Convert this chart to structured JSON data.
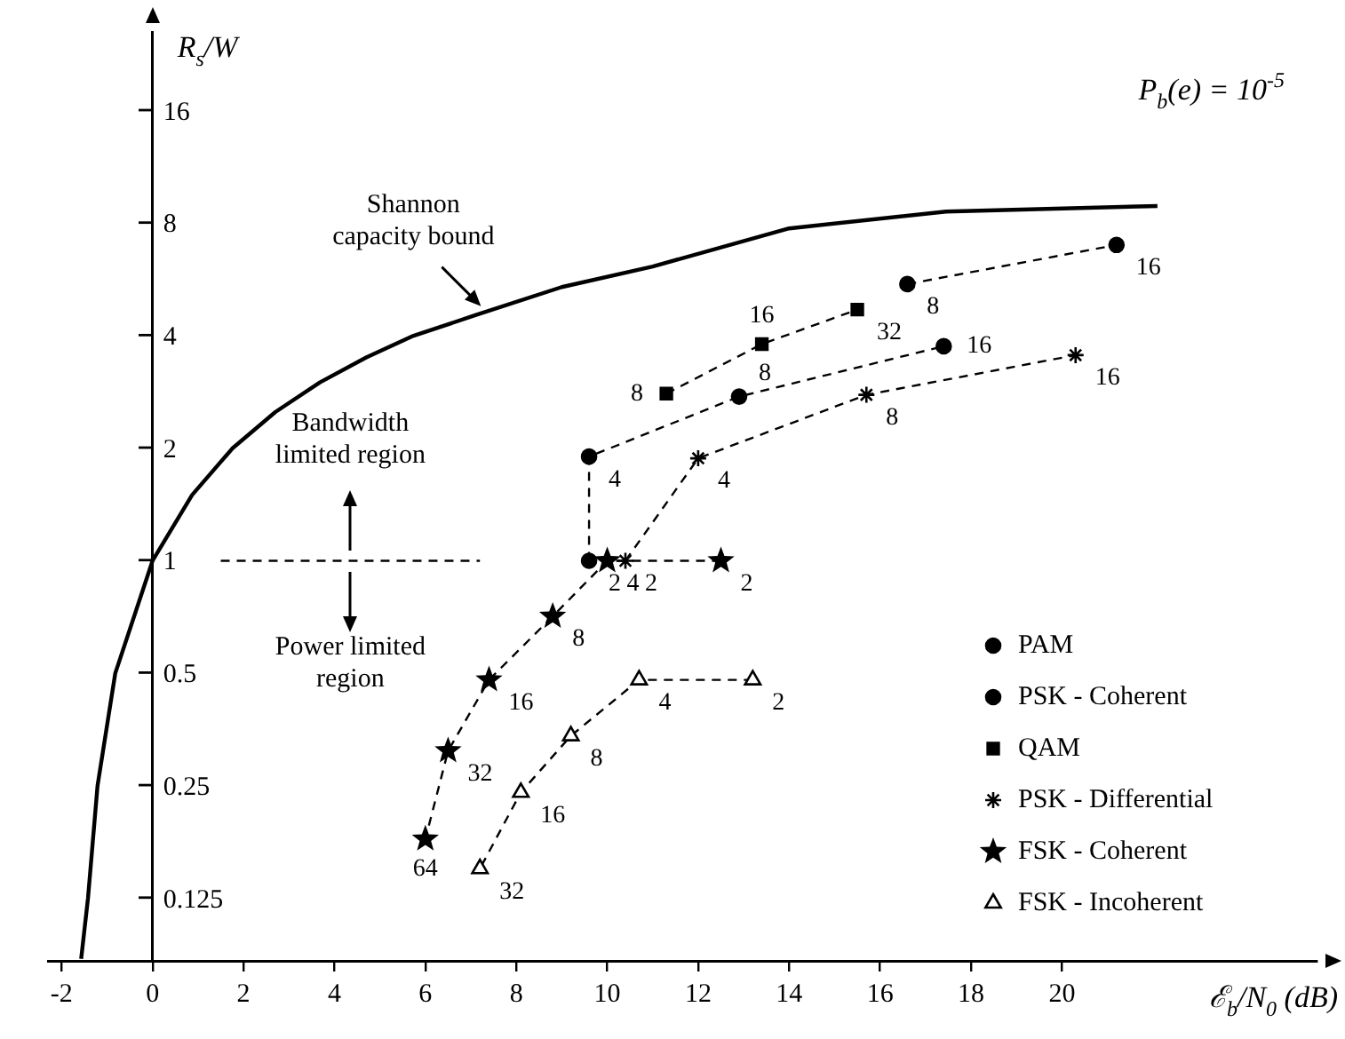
{
  "chart_data": {
    "type": "scatter",
    "title": "P$_{b}$(e) = 10$^{-5}$",
    "xlabel": "ℰ$_{b}$/N$_{0}$ (dB)",
    "ylabel": "R$_{s}$/W",
    "log": "y",
    "xlim": [
      -2.3,
      25.6
    ],
    "ylim": [
      0.085,
      26
    ],
    "xticks": [
      -2,
      0,
      2,
      4,
      6,
      8,
      10,
      12,
      14,
      16,
      18,
      20
    ],
    "yticks": [
      0.125,
      0.25,
      0.5,
      1,
      2,
      4,
      8,
      16
    ],
    "legend": "bottom right",
    "line_style": "dashed",
    "annotations": [
      {
        "text": "Shannon capacity bound",
        "x": 7.3,
        "y": 4.7
      },
      "Bandwidth limited region",
      "Power limited region",
      {
        "text": "8",
        "x": 16.6,
        "y": 5.5
      },
      {
        "text": "16",
        "x": 21.2,
        "y": 7
      },
      {
        "text": "2",
        "x": 9.6,
        "y": 1
      },
      {
        "text": "4",
        "x": 9.6,
        "y": 1.9
      },
      {
        "text": "8",
        "x": 12.9,
        "y": 2.75
      },
      {
        "text": "16",
        "x": 17.4,
        "y": 3.75
      },
      {
        "text": "8",
        "x": 11.3,
        "y": 2.8
      },
      {
        "text": "16",
        "x": 13.4,
        "y": 3.8
      },
      {
        "text": "32",
        "x": 15.5,
        "y": 4.7
      },
      {
        "text": "2",
        "x": 10.4,
        "y": 1
      },
      {
        "text": "4",
        "x": 12.0,
        "y": 1.88
      },
      {
        "text": "8",
        "x": 15.7,
        "y": 2.78
      },
      {
        "text": "16",
        "x": 20.3,
        "y": 3.55
      },
      {
        "text": "2",
        "x": 12.5,
        "y": 1
      },
      {
        "text": "4",
        "x": 10.0,
        "y": 1
      },
      {
        "text": "8",
        "x": 8.8,
        "y": 0.71
      },
      {
        "text": "16",
        "x": 7.4,
        "y": 0.48
      },
      {
        "text": "32",
        "x": 6.5,
        "y": 0.31
      },
      {
        "text": "64",
        "x": 6.0,
        "y": 0.18
      },
      {
        "text": "2",
        "x": 13.2,
        "y": 0.48
      },
      {
        "text": "4",
        "x": 10.7,
        "y": 0.48
      },
      {
        "text": "8",
        "x": 9.2,
        "y": 0.34
      },
      {
        "text": "16",
        "x": 8.1,
        "y": 0.24
      },
      {
        "text": "32",
        "x": 7.2,
        "y": 0.15
      }
    ],
    "series": [
      {
        "type": "line",
        "color": "#000000",
        "marker": "none",
        "line_style": "solid",
        "x": [
          -1.57,
          -1.42,
          -1.21,
          -0.82,
          0,
          0.87,
          1.76,
          2.7,
          3.68,
          4.7,
          5.74,
          7.1,
          9,
          11,
          14,
          17.45,
          22.1
        ],
        "values": [
          0.086,
          0.125,
          0.25,
          0.5,
          1,
          1.5,
          2,
          2.5,
          3,
          3.5,
          4,
          4.54,
          5.4,
          6.13,
          7.75,
          8.6,
          8.9
        ]
      },
      {
        "type": "line",
        "color": "#000000",
        "marker": "none",
        "line_style": "dashed",
        "x": [
          1.5,
          7.2
        ],
        "values": [
          1,
          1
        ]
      },
      {
        "name": "PAM",
        "color": "#000000",
        "marker": "circle",
        "x": [
          16.6,
          21.2
        ],
        "values": [
          5.5,
          7
        ]
      },
      {
        "name": "PSK - Coherent",
        "color": "#000000",
        "marker": "circle",
        "x": [
          9.6,
          9.6,
          12.9,
          17.4
        ],
        "values": [
          1,
          1.9,
          2.75,
          3.75
        ]
      },
      {
        "name": "QAM",
        "color": "#000000",
        "marker": "square",
        "x": [
          11.3,
          13.4,
          15.5
        ],
        "values": [
          2.8,
          3.8,
          4.7
        ]
      },
      {
        "name": "PSK - Differential",
        "color": "#000000",
        "marker": "cross",
        "x": [
          10.4,
          12.0,
          15.7,
          20.3
        ],
        "values": [
          1,
          1.88,
          2.78,
          3.55
        ]
      },
      {
        "name": "FSK - Coherent",
        "color": "#000000",
        "marker": "star",
        "x": [
          12.5,
          10.0,
          8.8,
          7.4,
          6.5,
          6.0
        ],
        "values": [
          1,
          1,
          0.71,
          0.48,
          0.31,
          0.18
        ]
      },
      {
        "name": "FSK - Incoherent",
        "color": "#000000",
        "marker": "triangle",
        "x": [
          13.2,
          10.7,
          9.2,
          8.1,
          7.2
        ],
        "values": [
          0.48,
          0.48,
          0.34,
          0.24,
          0.15
        ]
      }
    ]
  }
}
